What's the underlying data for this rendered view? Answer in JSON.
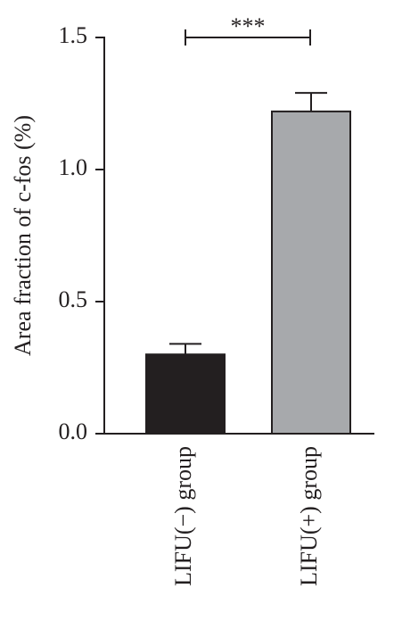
{
  "chart_data": {
    "type": "bar",
    "y_label": "Area fraction of c-fos (%)",
    "categories": [
      "LIFU(−) group",
      "LIFU(+) group"
    ],
    "values": [
      0.3,
      1.22
    ],
    "errors": [
      0.04,
      0.07
    ],
    "colors": [
      "#231f20",
      "#a7a9ac"
    ],
    "annotation": "***",
    "ylim": [
      0,
      1.5
    ],
    "yticks": [
      {
        "value": 0,
        "label": "0.0"
      },
      0.5,
      {
        "value": 1,
        "label": "1.0"
      },
      {
        "value": 1.5,
        "label": "1.5"
      }
    ]
  }
}
